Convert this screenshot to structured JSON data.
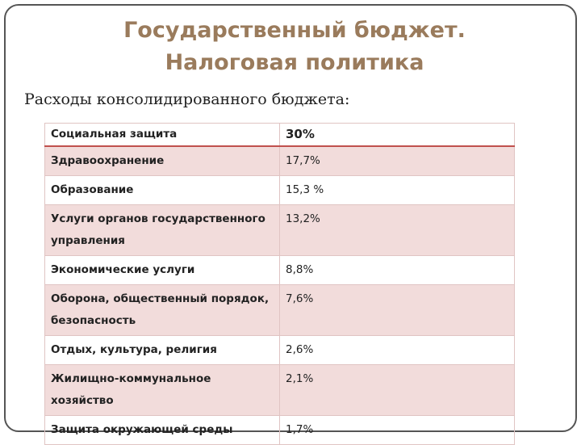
{
  "header": {
    "title_lines": [
      "Государственный бюджет.",
      "Налоговая политика"
    ]
  },
  "subtitle": "Расходы консолидированного бюджета:",
  "table": {
    "rows": [
      [
        "Социальная защита",
        "30%"
      ],
      [
        "Здравоохранение",
        "17,7%"
      ],
      [
        "Образование",
        "15,3 %"
      ],
      [
        "Услуги органов государственного управления",
        "13,2%"
      ],
      [
        "Экономические услуги",
        "8,8%"
      ],
      [
        "Оборона, общественный порядок, безопасность",
        "7,6%"
      ],
      [
        "Отдых, культура, религия",
        "2,6%"
      ],
      [
        "Жилищно-коммунальное хозяйство",
        "2,1%"
      ],
      [
        "Защита окружающей среды",
        "1,7%"
      ]
    ]
  }
}
